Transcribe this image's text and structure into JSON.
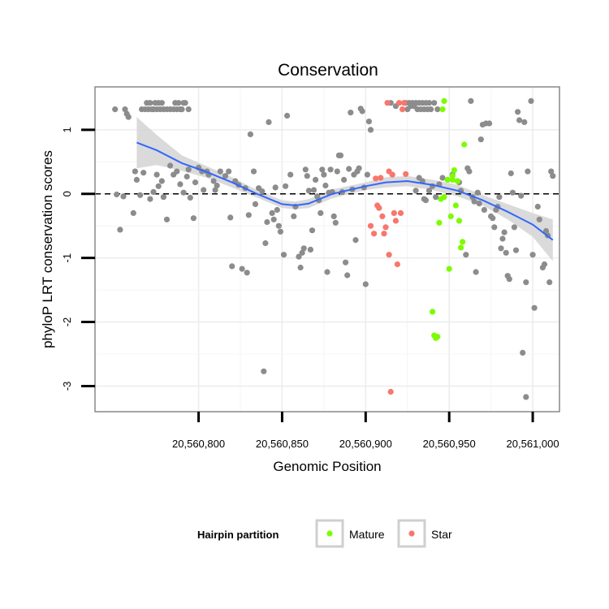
{
  "chart_data": {
    "type": "scatter",
    "title": "Conservation",
    "xlabel": "Genomic Position",
    "ylabel": "phyloP LRT conservation scores",
    "xlim": [
      20560738,
      20561016
    ],
    "ylim": [
      -3.4,
      1.67
    ],
    "x_ticks": [
      20560800,
      20560850,
      20560900,
      20560950,
      20561000
    ],
    "x_tick_labels": [
      "20,560,800",
      "20,560,850",
      "20,560,900",
      "20,560,950",
      "20,561,000"
    ],
    "y_ticks": [
      -3,
      -2,
      -1,
      0,
      1
    ],
    "y_tick_labels": [
      "-3",
      "-2",
      "-1",
      "0",
      "1"
    ],
    "reference_line": {
      "y": 0,
      "style": "dashed"
    },
    "legend": {
      "title": "Hairpin partition",
      "position": "bottom",
      "entries": [
        {
          "label": "Mature",
          "color": "#7cfc00"
        },
        {
          "label": "Star",
          "color": "#f8766d"
        }
      ]
    },
    "colors": {
      "other": "#8c8c8c",
      "mature": "#7cfc00",
      "star": "#f8766d",
      "smooth": "#3366ff",
      "band": "#d4d4d4"
    },
    "series": [
      {
        "name": "Other",
        "points": [
          [
            20560750,
            1.32
          ],
          [
            20560756,
            1.32
          ],
          [
            20560757,
            1.25
          ],
          [
            20560758,
            1.2
          ],
          [
            20560766,
            1.32
          ],
          [
            20560768,
            1.32
          ],
          [
            20560769,
            1.42
          ],
          [
            20560770,
            1.32
          ],
          [
            20560771,
            1.42
          ],
          [
            20560772,
            1.32
          ],
          [
            20560773,
            1.32
          ],
          [
            20560774,
            1.42
          ],
          [
            20560775,
            1.32
          ],
          [
            20560776,
            1.42
          ],
          [
            20560777,
            1.32
          ],
          [
            20560778,
            1.42
          ],
          [
            20560779,
            1.32
          ],
          [
            20560781,
            1.32
          ],
          [
            20560783,
            1.32
          ],
          [
            20560785,
            1.32
          ],
          [
            20560786,
            1.42
          ],
          [
            20560787,
            1.32
          ],
          [
            20560788,
            1.42
          ],
          [
            20560789,
            1.32
          ],
          [
            20560790,
            1.32
          ],
          [
            20560791,
            1.42
          ],
          [
            20560792,
            1.42
          ],
          [
            20560794,
            1.32
          ],
          [
            20560751,
            -0.01
          ],
          [
            20560753,
            -0.56
          ],
          [
            20560755,
            -0.04
          ],
          [
            20560761,
            -0.3
          ],
          [
            20560762,
            0.35
          ],
          [
            20560763,
            0.22
          ],
          [
            20560765,
            -0.02
          ],
          [
            20560767,
            0.33
          ],
          [
            20560771,
            -0.08
          ],
          [
            20560773,
            0.03
          ],
          [
            20560775,
            0.3
          ],
          [
            20560776,
            0.12
          ],
          [
            20560778,
            0.2
          ],
          [
            20560779,
            -0.05
          ],
          [
            20560781,
            -0.4
          ],
          [
            20560783,
            0.44
          ],
          [
            20560785,
            0.3
          ],
          [
            20560787,
            0.35
          ],
          [
            20560789,
            0.15
          ],
          [
            20560791,
            0.02
          ],
          [
            20560793,
            0.27
          ],
          [
            20560794,
            0.38
          ],
          [
            20560795,
            -0.06
          ],
          [
            20560797,
            -0.38
          ],
          [
            20560798,
            0.18
          ],
          [
            20560800,
            0.41
          ],
          [
            20560802,
            0.35
          ],
          [
            20560803,
            0.06
          ],
          [
            20560805,
            0.35
          ],
          [
            20560806,
            0.3
          ],
          [
            20560809,
            0.2
          ],
          [
            20560810,
            0.06
          ],
          [
            20560811,
            0.13
          ],
          [
            20560813,
            0.35
          ],
          [
            20560816,
            0.28
          ],
          [
            20560818,
            0.35
          ],
          [
            20560819,
            -0.37
          ],
          [
            20560820,
            -1.13
          ],
          [
            20560822,
            0.2
          ],
          [
            20560824,
            0.14
          ],
          [
            20560826,
            -1.17
          ],
          [
            20560828,
            0.09
          ],
          [
            20560829,
            -1.23
          ],
          [
            20560830,
            -0.33
          ],
          [
            20560831,
            0.93
          ],
          [
            20560833,
            0.35
          ],
          [
            20560834,
            -0.16
          ],
          [
            20560836,
            0.09
          ],
          [
            20560838,
            0.04
          ],
          [
            20560839,
            -2.77
          ],
          [
            20560840,
            -0.77
          ],
          [
            20560841,
            -0.44
          ],
          [
            20560842,
            1.12
          ],
          [
            20560844,
            -0.3
          ],
          [
            20560845,
            -0.4
          ],
          [
            20560846,
            0.1
          ],
          [
            20560847,
            -0.25
          ],
          [
            20560848,
            -0.5
          ],
          [
            20560849,
            -0.59
          ],
          [
            20560851,
            -0.95
          ],
          [
            20560852,
            0.12
          ],
          [
            20560853,
            1.22
          ],
          [
            20560855,
            0.3
          ],
          [
            20560857,
            -0.35
          ],
          [
            20560858,
            -0.2
          ],
          [
            20560860,
            -0.98
          ],
          [
            20560861,
            -1.15
          ],
          [
            20560862,
            -0.92
          ],
          [
            20560863,
            -0.85
          ],
          [
            20560864,
            0.38
          ],
          [
            20560865,
            0.28
          ],
          [
            20560866,
            0.05
          ],
          [
            20560867,
            -0.87
          ],
          [
            20560868,
            -0.57
          ],
          [
            20560869,
            0.06
          ],
          [
            20560870,
            0.22
          ],
          [
            20560871,
            -0.04
          ],
          [
            20560872,
            -0.1
          ],
          [
            20560873,
            -0.3
          ],
          [
            20560874,
            0.38
          ],
          [
            20560875,
            0.3
          ],
          [
            20560876,
            0.13
          ],
          [
            20560877,
            -1.22
          ],
          [
            20560878,
            0.02
          ],
          [
            20560879,
            0.38
          ],
          [
            20560880,
            0.03
          ],
          [
            20560881,
            -0.35
          ],
          [
            20560882,
            -0.45
          ],
          [
            20560883,
            0.35
          ],
          [
            20560884,
            0.6
          ],
          [
            20560885,
            0.6
          ],
          [
            20560886,
            0.03
          ],
          [
            20560887,
            0.22
          ],
          [
            20560888,
            -1.07
          ],
          [
            20560889,
            -1.27
          ],
          [
            20560890,
            0.39
          ],
          [
            20560891,
            1.27
          ],
          [
            20560892,
            0.07
          ],
          [
            20560893,
            0.3
          ],
          [
            20560894,
            -0.72
          ],
          [
            20560895,
            0.35
          ],
          [
            20560896,
            0.4
          ],
          [
            20560897,
            1.33
          ],
          [
            20560898,
            1.29
          ],
          [
            20560899,
            0.1
          ],
          [
            20560900,
            -1.41
          ],
          [
            20560901,
            0.3
          ],
          [
            20560902,
            1.13
          ],
          [
            20560903,
            1.0
          ],
          [
            20560915,
            1.42
          ],
          [
            20560918,
            1.37
          ],
          [
            20560924,
            1.42
          ],
          [
            20560925,
            1.32
          ],
          [
            20560926,
            1.42
          ],
          [
            20560927,
            1.37
          ],
          [
            20560928,
            1.42
          ],
          [
            20560929,
            1.37
          ],
          [
            20560930,
            1.42
          ],
          [
            20560931,
            1.32
          ],
          [
            20560932,
            1.42
          ],
          [
            20560933,
            1.32
          ],
          [
            20560934,
            1.42
          ],
          [
            20560935,
            1.32
          ],
          [
            20560936,
            1.42
          ],
          [
            20560937,
            1.32
          ],
          [
            20560938,
            1.42
          ],
          [
            20560939,
            1.32
          ],
          [
            20560941,
            1.42
          ],
          [
            20560943,
            1.32
          ],
          [
            20560930,
            0.05
          ],
          [
            20560932,
            0.25
          ],
          [
            20560934,
            0.2
          ],
          [
            20560935,
            -0.08
          ],
          [
            20560936,
            -0.1
          ],
          [
            20560938,
            0.05
          ],
          [
            20560940,
            0.12
          ],
          [
            20560942,
            -0.05
          ],
          [
            20560944,
            0.15
          ],
          [
            20560946,
            0.25
          ],
          [
            20560952,
            0.3
          ],
          [
            20560956,
            0.18
          ],
          [
            20560957,
            0.05
          ],
          [
            20560960,
            -0.95
          ],
          [
            20560961,
            0.4
          ],
          [
            20560962,
            0.35
          ],
          [
            20560963,
            1.45
          ],
          [
            20560964,
            -0.05
          ],
          [
            20560965,
            -0.12
          ],
          [
            20560966,
            -1.22
          ],
          [
            20560967,
            0.02
          ],
          [
            20560968,
            -0.15
          ],
          [
            20560969,
            0.85
          ],
          [
            20560970,
            1.08
          ],
          [
            20560971,
            -0.25
          ],
          [
            20560972,
            1.1
          ],
          [
            20560974,
            1.1
          ],
          [
            20560975,
            -0.35
          ],
          [
            20560976,
            -0.38
          ],
          [
            20560977,
            -0.52
          ],
          [
            20560978,
            -0.25
          ],
          [
            20560979,
            -0.2
          ],
          [
            20560980,
            -0.05
          ],
          [
            20560981,
            -0.85
          ],
          [
            20560982,
            -0.7
          ],
          [
            20560983,
            -0.6
          ],
          [
            20560984,
            -0.92
          ],
          [
            20560985,
            -1.28
          ],
          [
            20560986,
            -1.33
          ],
          [
            20560987,
            0.32
          ],
          [
            20560988,
            0.02
          ],
          [
            20560989,
            -0.52
          ],
          [
            20560990,
            -0.88
          ],
          [
            20560991,
            1.28
          ],
          [
            20560992,
            1.15
          ],
          [
            20560993,
            -0.03
          ],
          [
            20560994,
            -2.48
          ],
          [
            20560995,
            1.12
          ],
          [
            20560996,
            -3.17
          ],
          [
            20560996,
            -1.38
          ],
          [
            20560997,
            0.35
          ],
          [
            20560999,
            1.45
          ],
          [
            20561000,
            -0.95
          ],
          [
            20561001,
            -1.78
          ],
          [
            20561003,
            -0.2
          ],
          [
            20561004,
            -0.4
          ],
          [
            20561006,
            -1.15
          ],
          [
            20561007,
            -1.1
          ],
          [
            20561008,
            -0.58
          ],
          [
            20561009,
            -0.65
          ],
          [
            20561010,
            -1.38
          ],
          [
            20561011,
            0.35
          ],
          [
            20561012,
            0.28
          ]
        ]
      },
      {
        "name": "Mature",
        "points": [
          [
            20560940,
            -1.84
          ],
          [
            20560941,
            -2.21
          ],
          [
            20560942,
            -2.25
          ],
          [
            20560943,
            -2.23
          ],
          [
            20560944,
            -0.45
          ],
          [
            20560945,
            -0.08
          ],
          [
            20560946,
            1.32
          ],
          [
            20560947,
            1.45
          ],
          [
            20560947,
            -0.05
          ],
          [
            20560949,
            0.22
          ],
          [
            20560950,
            -1.17
          ],
          [
            20560951,
            -0.35
          ],
          [
            20560952,
            0.28
          ],
          [
            20560953,
            0.37
          ],
          [
            20560954,
            -0.18
          ],
          [
            20560955,
            0.2
          ],
          [
            20560956,
            -0.42
          ],
          [
            20560957,
            -0.84
          ],
          [
            20560958,
            -0.75
          ],
          [
            20560959,
            0.77
          ],
          [
            20560952,
            0.22
          ]
        ]
      },
      {
        "name": "Star",
        "points": [
          [
            20560903,
            -0.5
          ],
          [
            20560905,
            -0.62
          ],
          [
            20560906,
            0.24
          ],
          [
            20560907,
            -0.18
          ],
          [
            20560908,
            -0.22
          ],
          [
            20560909,
            0.25
          ],
          [
            20560910,
            -0.35
          ],
          [
            20560911,
            -0.62
          ],
          [
            20560912,
            -0.52
          ],
          [
            20560913,
            1.42
          ],
          [
            20560914,
            -0.95
          ],
          [
            20560915,
            -3.09
          ],
          [
            20560916,
            0.3
          ],
          [
            20560917,
            -0.3
          ],
          [
            20560918,
            -0.42
          ],
          [
            20560919,
            -1.1
          ],
          [
            20560920,
            1.42
          ],
          [
            20560921,
            -0.3
          ],
          [
            20560922,
            1.32
          ],
          [
            20560923,
            1.42
          ],
          [
            20560924,
            0.31
          ],
          [
            20560914,
            0.35
          ]
        ]
      }
    ],
    "smooth_line": {
      "x": [
        20560763,
        20560775,
        20560790,
        20560805,
        20560820,
        20560835,
        20560850,
        20560858,
        20560866,
        20560880,
        20560900,
        20560912,
        20560925,
        20560940,
        20560955,
        20560970,
        20560985,
        20561000,
        20561012
      ],
      "y": [
        0.8,
        0.68,
        0.48,
        0.34,
        0.18,
        0.0,
        -0.16,
        -0.18,
        -0.15,
        0.0,
        0.12,
        0.18,
        0.2,
        0.14,
        0.05,
        -0.1,
        -0.28,
        -0.48,
        -0.72
      ],
      "lower": [
        0.4,
        0.45,
        0.36,
        0.25,
        0.1,
        -0.06,
        -0.22,
        -0.24,
        -0.22,
        -0.07,
        0.06,
        0.1,
        0.12,
        0.06,
        -0.04,
        -0.18,
        -0.4,
        -0.67,
        -1.05
      ],
      "upper": [
        1.2,
        0.92,
        0.6,
        0.43,
        0.26,
        0.06,
        -0.1,
        -0.12,
        -0.08,
        0.07,
        0.18,
        0.26,
        0.28,
        0.22,
        0.14,
        -0.02,
        -0.16,
        -0.3,
        -0.4
      ]
    }
  }
}
